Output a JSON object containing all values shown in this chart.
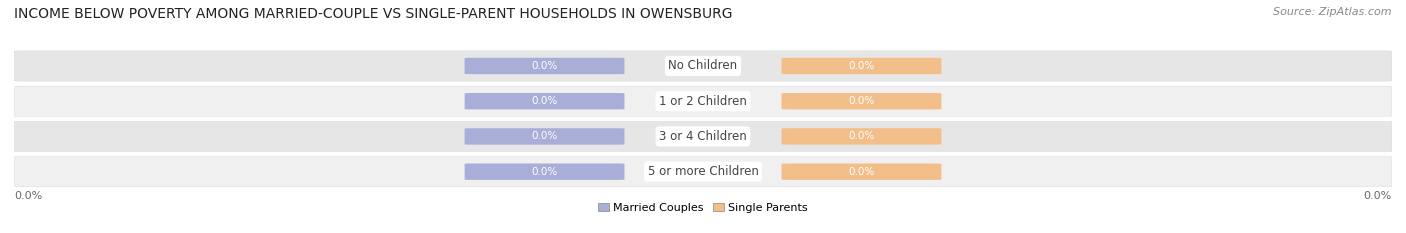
{
  "title": "INCOME BELOW POVERTY AMONG MARRIED-COUPLE VS SINGLE-PARENT HOUSEHOLDS IN OWENSBURG",
  "source": "Source: ZipAtlas.com",
  "categories": [
    "No Children",
    "1 or 2 Children",
    "3 or 4 Children",
    "5 or more Children"
  ],
  "married_values": [
    0.0,
    0.0,
    0.0,
    0.0
  ],
  "single_values": [
    0.0,
    0.0,
    0.0,
    0.0
  ],
  "married_color": "#a8aed8",
  "single_color": "#f2be8a",
  "row_bg_even": "#f0f0f0",
  "row_bg_odd": "#e6e6e6",
  "row_outline": "#d8d8d8",
  "title_fontsize": 10,
  "source_fontsize": 8,
  "label_fontsize": 8,
  "category_fontsize": 8.5,
  "value_fontsize": 7.5,
  "legend_married": "Married Couples",
  "legend_single": "Single Parents",
  "bg_color": "#ffffff",
  "axis_label_color": "#666666",
  "value_text_color": "#ffffff",
  "category_text_color": "#444444",
  "left_axis_label": "0.0%",
  "right_axis_label": "0.0%"
}
